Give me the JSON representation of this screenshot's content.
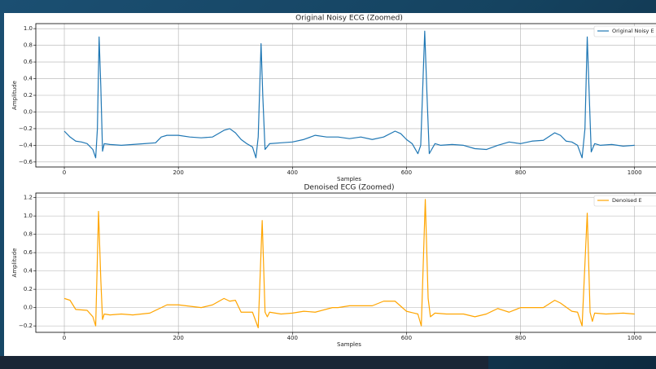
{
  "chart_data": [
    {
      "type": "line",
      "title": "Original Noisy ECG (Zoomed)",
      "xlabel": "Samples",
      "ylabel": "Amplitude",
      "x": [
        0,
        10,
        20,
        30,
        40,
        50,
        55,
        58,
        61,
        64,
        67,
        70,
        80,
        100,
        120,
        140,
        160,
        170,
        180,
        200,
        220,
        240,
        260,
        280,
        290,
        300,
        310,
        320,
        330,
        336,
        340,
        345,
        348,
        352,
        360,
        380,
        400,
        420,
        440,
        460,
        480,
        500,
        520,
        540,
        560,
        580,
        590,
        600,
        610,
        620,
        625,
        632,
        636,
        640,
        650,
        660,
        680,
        700,
        720,
        740,
        760,
        780,
        800,
        820,
        840,
        860,
        870,
        880,
        890,
        900,
        908,
        913,
        917,
        920,
        924,
        930,
        940,
        960,
        980,
        1000
      ],
      "series": [
        {
          "name": "Original Noisy E",
          "color": "#1f77b4",
          "values": [
            -0.23,
            -0.3,
            -0.35,
            -0.36,
            -0.38,
            -0.45,
            -0.55,
            -0.2,
            0.9,
            0.3,
            -0.47,
            -0.38,
            -0.39,
            -0.4,
            -0.39,
            -0.38,
            -0.37,
            -0.3,
            -0.28,
            -0.28,
            -0.3,
            -0.31,
            -0.3,
            -0.22,
            -0.2,
            -0.25,
            -0.33,
            -0.38,
            -0.42,
            -0.55,
            -0.3,
            0.82,
            0.2,
            -0.45,
            -0.38,
            -0.37,
            -0.36,
            -0.33,
            -0.28,
            -0.3,
            -0.3,
            -0.32,
            -0.3,
            -0.33,
            -0.3,
            -0.23,
            -0.26,
            -0.33,
            -0.38,
            -0.5,
            -0.4,
            0.97,
            0.2,
            -0.5,
            -0.38,
            -0.4,
            -0.39,
            -0.4,
            -0.44,
            -0.45,
            -0.4,
            -0.36,
            -0.38,
            -0.35,
            -0.34,
            -0.25,
            -0.28,
            -0.35,
            -0.36,
            -0.4,
            -0.55,
            -0.2,
            0.9,
            0.3,
            -0.48,
            -0.38,
            -0.4,
            -0.39,
            -0.41,
            -0.4
          ]
        }
      ],
      "xlim": [
        -50,
        1049
      ],
      "ylim": [
        -0.66,
        1.06
      ],
      "xticks": [
        0,
        200,
        400,
        600,
        800,
        1000
      ],
      "yticks": [
        {
          "value": -0.6,
          "label": "−0.6"
        },
        {
          "value": -0.4,
          "label": "−0.4"
        },
        {
          "value": -0.2,
          "label": "−0.2"
        },
        {
          "value": 0,
          "label": "0.0"
        },
        {
          "value": 0.2,
          "label": "0.2"
        },
        {
          "value": 0.4,
          "label": "0.4"
        },
        {
          "value": 0.6,
          "label": "0.6"
        },
        {
          "value": 0.8,
          "label": "0.8"
        },
        {
          "value": 1,
          "label": "1.0"
        }
      ],
      "grid": true,
      "legend": "upper right"
    },
    {
      "type": "line",
      "title": "Denoised ECG (Zoomed)",
      "xlabel": "Samples",
      "ylabel": "Amplitude",
      "x": [
        0,
        10,
        20,
        40,
        50,
        55,
        60,
        64,
        67,
        70,
        80,
        100,
        120,
        150,
        170,
        180,
        200,
        240,
        260,
        280,
        290,
        300,
        310,
        330,
        340,
        347,
        352,
        356,
        360,
        380,
        400,
        420,
        440,
        470,
        480,
        500,
        540,
        560,
        580,
        600,
        620,
        626,
        633,
        638,
        642,
        650,
        670,
        700,
        720,
        740,
        760,
        780,
        800,
        820,
        840,
        860,
        870,
        890,
        900,
        908,
        917,
        922,
        926,
        930,
        950,
        980,
        1000
      ],
      "series": [
        {
          "name": "Denoised E",
          "color": "#ffa500",
          "values": [
            0.1,
            0.08,
            -0.02,
            -0.03,
            -0.1,
            -0.2,
            1.05,
            0.3,
            -0.13,
            -0.07,
            -0.08,
            -0.07,
            -0.08,
            -0.06,
            0.0,
            0.03,
            0.03,
            0.0,
            0.03,
            0.1,
            0.07,
            0.08,
            -0.05,
            -0.05,
            -0.22,
            0.95,
            -0.05,
            -0.1,
            -0.05,
            -0.07,
            -0.06,
            -0.04,
            -0.05,
            0.0,
            0.0,
            0.02,
            0.02,
            0.07,
            0.07,
            -0.04,
            -0.07,
            -0.2,
            1.18,
            0.1,
            -0.1,
            -0.06,
            -0.07,
            -0.07,
            -0.1,
            -0.07,
            -0.01,
            -0.05,
            0.0,
            0.0,
            0.0,
            0.08,
            0.05,
            -0.04,
            -0.05,
            -0.2,
            1.03,
            -0.05,
            -0.15,
            -0.06,
            -0.07,
            -0.06,
            -0.07
          ]
        }
      ],
      "xlim": [
        -50,
        1049
      ],
      "ylim": [
        -0.27,
        1.25
      ],
      "xticks": [
        0,
        200,
        400,
        600,
        800,
        1000
      ],
      "yticks": [
        {
          "value": -0.2,
          "label": "−0.2"
        },
        {
          "value": 0,
          "label": "0.0"
        },
        {
          "value": 0.2,
          "label": "0.2"
        },
        {
          "value": 0.4,
          "label": "0.4"
        },
        {
          "value": 0.6,
          "label": "0.6"
        },
        {
          "value": 0.8,
          "label": "0.8"
        },
        {
          "value": 1,
          "label": "1.0"
        },
        {
          "value": 1.2,
          "label": "1.2"
        }
      ],
      "grid": true,
      "legend": "upper right"
    }
  ]
}
